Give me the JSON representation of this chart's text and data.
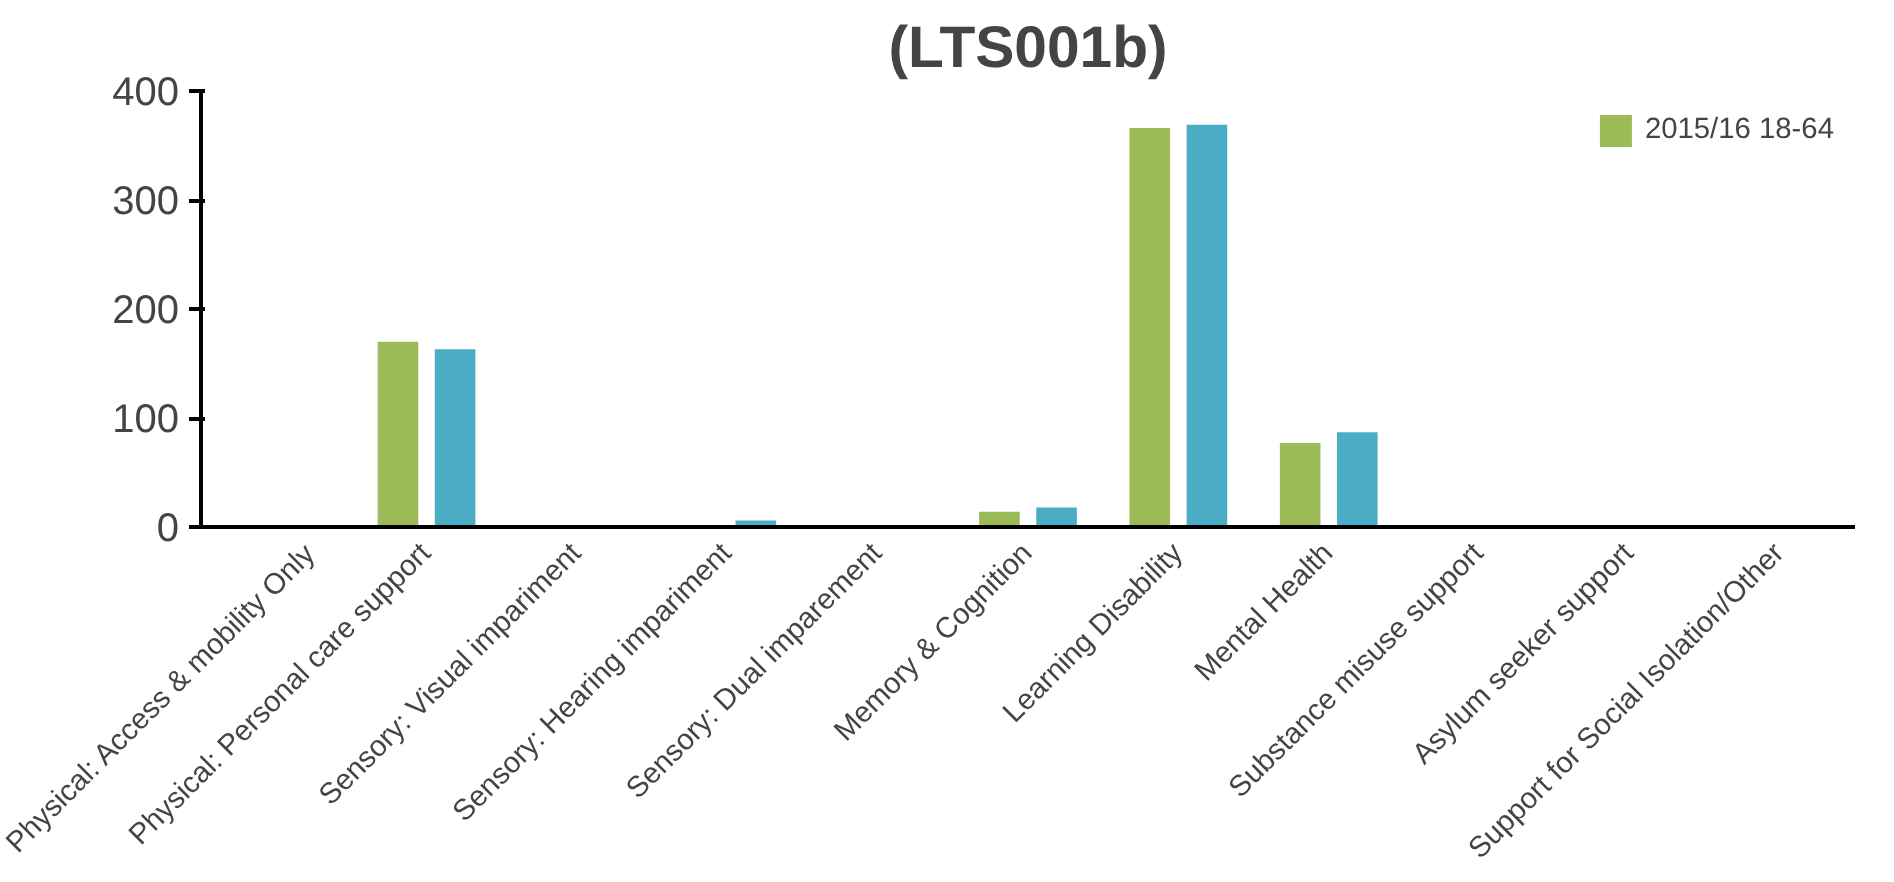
{
  "chart_data": {
    "type": "bar",
    "title": "(LTS001b)",
    "categories": [
      "Physical: Access & mobility Only",
      "Physical: Personal care support",
      "Sensory: Visual impariment",
      "Sensory: Hearing impariment",
      "Sensory: Dual imparement",
      "Memory & Cognition",
      "Learning Disability",
      "Mental Health",
      "Substance misuse support",
      "Asylum seeker support",
      "Support for Social Isolation/Other"
    ],
    "series": [
      {
        "name": "2015/16 18-64",
        "color": "#9bbb59",
        "values": [
          0,
          170,
          0,
          null,
          0,
          14,
          366,
          77,
          0,
          0,
          0
        ]
      },
      {
        "color": "#4bacc6",
        "values": [
          0,
          163,
          null,
          6,
          0,
          18,
          369,
          87,
          0,
          0,
          null
        ]
      }
    ],
    "ylim": [
      0,
      400
    ],
    "yticks": [
      0,
      100,
      200,
      300,
      400
    ],
    "grid": false,
    "legend": "top right"
  }
}
